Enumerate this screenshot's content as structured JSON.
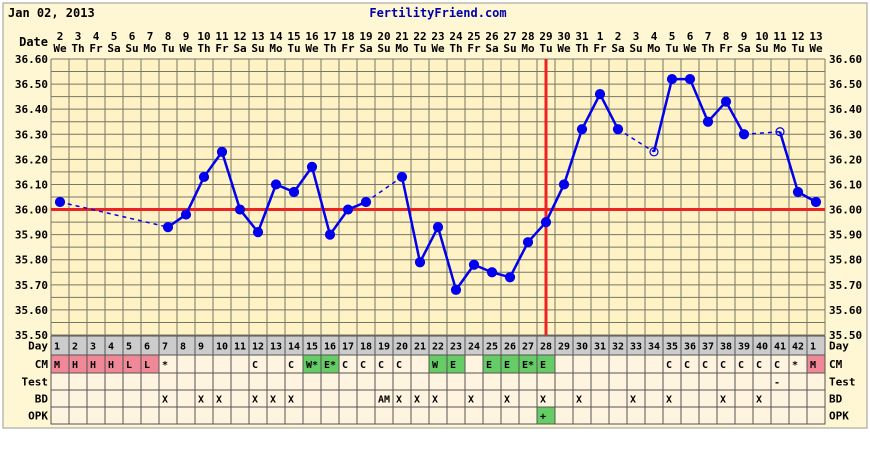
{
  "header": {
    "date": "Jan 02, 2013",
    "site": "FertilityFriend.com"
  },
  "labels": {
    "date": "Date",
    "day": "Day",
    "cm": "CM",
    "test": "Test",
    "bd": "BD",
    "opk": "OPK"
  },
  "colors": {
    "temp_line": "#0000ee",
    "coverline": "#ee2222",
    "menses": "#f08898",
    "fertile": "#66cc66",
    "grid": "#777766",
    "plot_bg": "#fff2c4",
    "page_bg": "#fff7d4"
  },
  "chart_data": {
    "type": "line",
    "title": "",
    "ylim": [
      35.5,
      36.6
    ],
    "yticks": [
      "36.60",
      "36.50",
      "36.40",
      "36.30",
      "36.20",
      "36.10",
      "36.00",
      "35.90",
      "35.80",
      "35.70",
      "35.60",
      "35.50"
    ],
    "dates": [
      "2",
      "3",
      "4",
      "5",
      "6",
      "7",
      "8",
      "9",
      "10",
      "11",
      "12",
      "13",
      "14",
      "15",
      "16",
      "17",
      "18",
      "19",
      "20",
      "21",
      "22",
      "23",
      "24",
      "25",
      "26",
      "27",
      "28",
      "29",
      "30",
      "31",
      "1",
      "2",
      "3",
      "4",
      "5",
      "6",
      "7",
      "8",
      "9",
      "10",
      "11",
      "12",
      "13"
    ],
    "weekdays": [
      "We",
      "Th",
      "Fr",
      "Sa",
      "Su",
      "Mo",
      "Tu",
      "We",
      "Th",
      "Fr",
      "Sa",
      "Su",
      "Mo",
      "Tu",
      "We",
      "Th",
      "Fr",
      "Sa",
      "Su",
      "Mo",
      "Tu",
      "We",
      "Th",
      "Fr",
      "Sa",
      "Su",
      "Mo",
      "Tu",
      "We",
      "Th",
      "Fr",
      "Sa",
      "Su",
      "Mo",
      "Tu",
      "We",
      "Th",
      "Fr",
      "Sa",
      "Su",
      "Mo",
      "Tu",
      "We"
    ],
    "cycle_days": [
      "1",
      "2",
      "3",
      "4",
      "5",
      "6",
      "7",
      "8",
      "9",
      "10",
      "11",
      "12",
      "13",
      "14",
      "15",
      "16",
      "17",
      "18",
      "19",
      "20",
      "21",
      "22",
      "23",
      "24",
      "25",
      "26",
      "27",
      "28",
      "29",
      "30",
      "31",
      "32",
      "33",
      "34",
      "35",
      "36",
      "37",
      "38",
      "39",
      "40",
      "41",
      "42",
      "1"
    ],
    "temps": [
      36.03,
      null,
      null,
      null,
      null,
      null,
      35.93,
      35.98,
      36.13,
      36.23,
      36.0,
      35.91,
      36.1,
      36.07,
      36.17,
      35.9,
      36.0,
      36.03,
      null,
      36.13,
      35.79,
      35.93,
      35.68,
      35.78,
      35.75,
      35.73,
      35.87,
      35.95,
      36.1,
      36.32,
      36.46,
      36.32,
      null,
      36.23,
      36.52,
      36.52,
      36.35,
      36.43,
      36.3,
      null,
      36.31,
      36.07,
      36.03
    ],
    "discarded": [
      33,
      40
    ],
    "coverline": 36.0,
    "ovulation_day_index": 27,
    "cm": [
      "M",
      "H",
      "H",
      "H",
      "L",
      "L",
      "*",
      "",
      "",
      "",
      "",
      "C",
      "",
      "C",
      "W*",
      "E*",
      "C",
      "C",
      "C",
      "C",
      "",
      "W",
      "E",
      "",
      "E",
      "E",
      "E*",
      "E",
      "",
      "",
      "",
      "",
      "",
      "",
      "C",
      "C",
      "C",
      "C",
      "C",
      "C",
      "C",
      "*",
      "M"
    ],
    "test": [
      "",
      "",
      "",
      "",
      "",
      "",
      "",
      "",
      "",
      "",
      "",
      "",
      "",
      "",
      "",
      "",
      "",
      "",
      "",
      "",
      "",
      "",
      "",
      "",
      "",
      "",
      "",
      "",
      "",
      "",
      "",
      "",
      "",
      "",
      "",
      "",
      "",
      "",
      "",
      "",
      "-",
      "",
      ""
    ],
    "bd": [
      "",
      "",
      "",
      "",
      "",
      "",
      "X",
      "",
      "X",
      "X",
      "",
      "X",
      "X",
      "X",
      "",
      "",
      "",
      "",
      "AM",
      "X",
      "X",
      "X",
      "",
      "X",
      "",
      "X",
      "",
      "X",
      "",
      "X",
      "",
      "",
      "X",
      "",
      "X",
      "",
      "",
      "X",
      "",
      "X",
      "",
      "",
      ""
    ],
    "opk": [
      "",
      "",
      "",
      "",
      "",
      "",
      "",
      "",
      "",
      "",
      "",
      "",
      "",
      "",
      "",
      "",
      "",
      "",
      "",
      "",
      "",
      "",
      "",
      "",
      "",
      "",
      "",
      "+",
      "",
      "",
      "",
      "",
      "",
      "",
      "",
      "",
      "",
      "",
      "",
      "",
      "",
      "",
      ""
    ]
  }
}
